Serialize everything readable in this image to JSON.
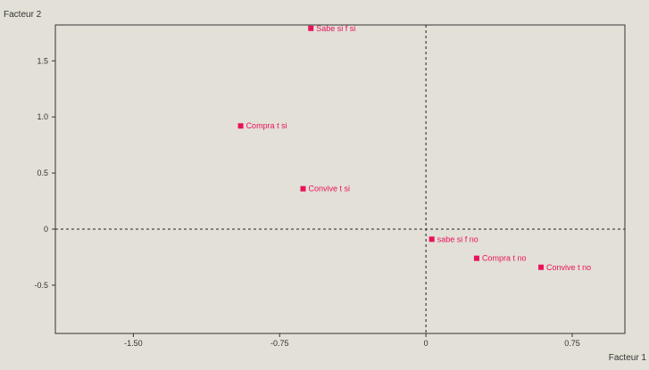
{
  "chart_data": {
    "type": "scatter",
    "title": "",
    "xlabel": "Facteur 1",
    "ylabel": "Facteur 2",
    "xlim": [
      -1.9,
      1.02
    ],
    "ylim": [
      -0.93,
      1.82
    ],
    "x_ticks": [
      {
        "value": -1.5,
        "label": "-1.50"
      },
      {
        "value": -0.75,
        "label": "-0.75"
      },
      {
        "value": 0,
        "label": "0"
      },
      {
        "value": 0.75,
        "label": "0.75"
      }
    ],
    "y_ticks": [
      {
        "value": 1.5,
        "label": "1.5"
      },
      {
        "value": 1.0,
        "label": "1.0"
      },
      {
        "value": 0.5,
        "label": "0.5"
      },
      {
        "value": 0,
        "label": "0"
      },
      {
        "value": -0.5,
        "label": "-0.5"
      }
    ],
    "reference_lines": {
      "x": 0,
      "y": 0,
      "style": "dashed"
    },
    "grid": false,
    "points": [
      {
        "label": "Sabe si f si",
        "x": -0.59,
        "y": 1.79
      },
      {
        "label": "Compra t si",
        "x": -0.95,
        "y": 0.92
      },
      {
        "label": "Convive t si",
        "x": -0.63,
        "y": 0.36
      },
      {
        "label": "sabe si f no",
        "x": 0.03,
        "y": -0.09
      },
      {
        "label": "Compra t no",
        "x": 0.26,
        "y": -0.26
      },
      {
        "label": "Convive t no",
        "x": 0.59,
        "y": -0.34
      }
    ],
    "colors": {
      "point": "#e8125a",
      "label": "#e8125a",
      "axes": "#333333",
      "reference": "#222222"
    }
  }
}
